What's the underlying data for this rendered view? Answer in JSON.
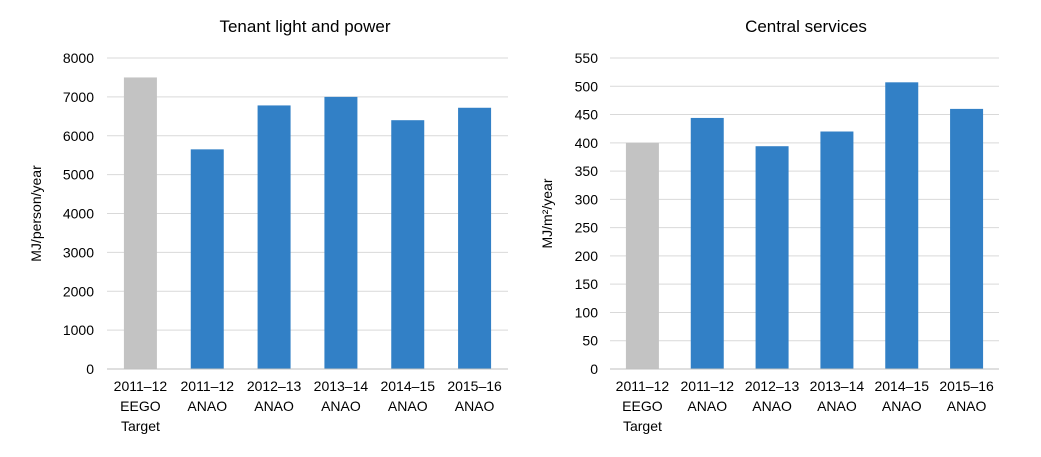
{
  "chart_data": [
    {
      "type": "bar",
      "title": "Tenant light and power",
      "xlabel": "",
      "ylabel": "MJ/person/year",
      "ylim": [
        0,
        8000
      ],
      "yticks": [
        "0",
        "1000",
        "2000",
        "3000",
        "4000",
        "5000",
        "6000",
        "7000",
        "8000"
      ],
      "grid": true,
      "categories": [
        [
          "2011–12",
          "EEGO",
          "Target"
        ],
        [
          "2011–12",
          "ANAO"
        ],
        [
          "2012–13",
          "ANAO"
        ],
        [
          "2013–14",
          "ANAO"
        ],
        [
          "2014–15",
          "ANAO"
        ],
        [
          "2015–16",
          "ANAO"
        ]
      ],
      "values": [
        7500,
        5650,
        6780,
        7000,
        6400,
        6720
      ],
      "colors": [
        "#c3c3c3",
        "#3280c6",
        "#3280c6",
        "#3280c6",
        "#3280c6",
        "#3280c6"
      ]
    },
    {
      "type": "bar",
      "title": "Central services",
      "xlabel": "",
      "ylabel": "MJ/m²/year",
      "ylim": [
        0,
        550
      ],
      "yticks": [
        "0",
        "50",
        "100",
        "150",
        "200",
        "250",
        "300",
        "350",
        "400",
        "450",
        "500",
        "550"
      ],
      "grid": true,
      "categories": [
        [
          "2011–12",
          "EEGO",
          "Target"
        ],
        [
          "2011–12",
          "ANAO"
        ],
        [
          "2012–13",
          "ANAO"
        ],
        [
          "2013–14",
          "ANAO"
        ],
        [
          "2014–15",
          "ANAO"
        ],
        [
          "2015–16",
          "ANAO"
        ]
      ],
      "values": [
        400,
        444,
        394,
        420,
        507,
        460
      ],
      "colors": [
        "#c3c3c3",
        "#3280c6",
        "#3280c6",
        "#3280c6",
        "#3280c6",
        "#3280c6"
      ]
    }
  ]
}
